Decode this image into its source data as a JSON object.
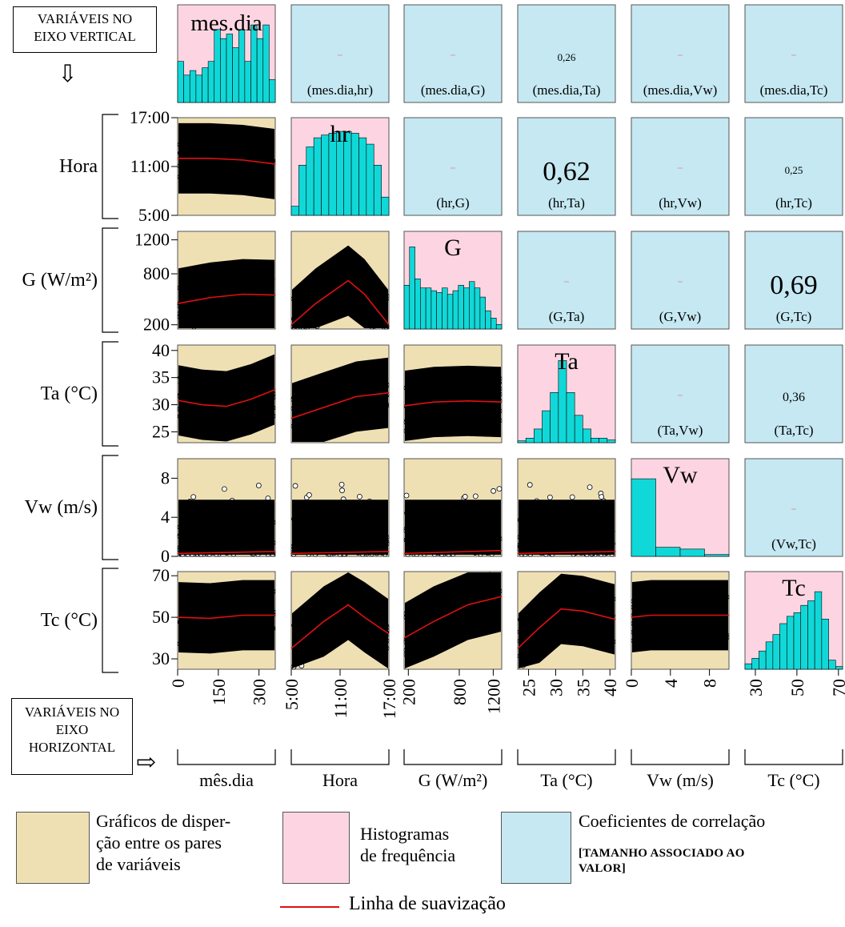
{
  "colors": {
    "scatter_bg": "#efe0b4",
    "hist_bg": "#fdd5e2",
    "corr_bg": "#c5e8f2",
    "hist_bar": "#10d8d8",
    "smooth_line": "#e01010",
    "points": "#000000"
  },
  "notes": {
    "vertical_axis_note": "VARIÁVEIS NO EIXO VERTICAL",
    "horizontal_axis_note": "VARIÁVEIS NO EIXO HORIZONTAL",
    "down_arrow_icon": "down-arrow-outline",
    "right_arrow_icon": "right-arrow-outline"
  },
  "chart_data": {
    "type": "scatter-matrix",
    "variables": [
      {
        "id": "mes.dia",
        "row_label": "",
        "col_label": "mês.dia",
        "hist_label": "mes.dia",
        "ticks": [
          "0",
          "150",
          "300"
        ]
      },
      {
        "id": "hr",
        "row_label": "Hora",
        "col_label": "Hora",
        "hist_label": "hr",
        "ticks": [
          "5:00",
          "11:00",
          "17:00"
        ]
      },
      {
        "id": "G",
        "row_label": "G (W/m²)",
        "col_label": "G (W/m²)",
        "hist_label": "G",
        "ticks": [
          "200",
          "800",
          "1200"
        ]
      },
      {
        "id": "Ta",
        "row_label": "Ta (°C)",
        "col_label": "Ta (°C)",
        "hist_label": "Ta",
        "ticks": [
          "25",
          "30",
          "35",
          "40"
        ]
      },
      {
        "id": "Vw",
        "row_label": "Vw (m/s)",
        "col_label": "Vw (m/s)",
        "hist_label": "Vw",
        "ticks": [
          "0",
          "4",
          "8"
        ]
      },
      {
        "id": "Tc",
        "row_label": "Tc (°C)",
        "col_label": "Tc (°C)",
        "hist_label": "Tc",
        "ticks": [
          "30",
          "50",
          "70"
        ]
      }
    ],
    "row_ticks": {
      "hr": [
        "17:00",
        "11:00",
        "5:00"
      ],
      "G": [
        "1200",
        "800",
        "200"
      ],
      "Ta": [
        "40",
        "35",
        "30",
        "25"
      ],
      "Vw": [
        "8",
        "4",
        "0"
      ],
      "Tc": [
        "70",
        "50",
        "30"
      ]
    },
    "ranges": {
      "mes.dia": [
        0,
        360
      ],
      "hr": [
        5,
        17
      ],
      "G": [
        150,
        1300
      ],
      "Ta": [
        23,
        41
      ],
      "Vw": [
        0,
        10
      ],
      "Tc": [
        25,
        72
      ]
    },
    "correlations": [
      {
        "pair": "(mes.dia,hr)",
        "value": "",
        "size": "tiny"
      },
      {
        "pair": "(mes.dia,G)",
        "value": "",
        "size": "tiny"
      },
      {
        "pair": "(mes.dia,Ta)",
        "value": "0,26",
        "size": "small"
      },
      {
        "pair": "(mes.dia,Vw)",
        "value": "",
        "size": "tiny"
      },
      {
        "pair": "(mes.dia,Tc)",
        "value": "",
        "size": "tiny"
      },
      {
        "pair": "(hr,G)",
        "value": "",
        "size": "tiny"
      },
      {
        "pair": "(hr,Ta)",
        "value": "0,62",
        "size": "large"
      },
      {
        "pair": "(hr,Vw)",
        "value": "",
        "size": "tiny"
      },
      {
        "pair": "(hr,Tc)",
        "value": "0,25",
        "size": "small"
      },
      {
        "pair": "(G,Ta)",
        "value": "",
        "size": "tiny"
      },
      {
        "pair": "(G,Vw)",
        "value": "",
        "size": "tiny"
      },
      {
        "pair": "(G,Tc)",
        "value": "0,69",
        "size": "large"
      },
      {
        "pair": "(Ta,Vw)",
        "value": "",
        "size": "tiny"
      },
      {
        "pair": "(Ta,Tc)",
        "value": "0,36",
        "size": "medium"
      },
      {
        "pair": "(Vw,Tc)",
        "value": "",
        "size": "tiny"
      }
    ],
    "histograms": {
      "mes.dia": [
        0.45,
        0.3,
        0.35,
        0.3,
        0.38,
        0.45,
        0.8,
        0.7,
        0.75,
        0.6,
        0.8,
        0.45,
        0.85,
        0.7,
        0.85,
        0.25
      ],
      "hr": [
        0.1,
        0.55,
        0.75,
        0.85,
        0.88,
        0.9,
        0.92,
        0.92,
        0.9,
        0.85,
        0.78,
        0.55,
        0.2
      ],
      "G": [
        0.48,
        0.9,
        0.55,
        0.45,
        0.45,
        0.42,
        0.4,
        0.45,
        0.38,
        0.42,
        0.48,
        0.45,
        0.52,
        0.45,
        0.35,
        0.2,
        0.12,
        0.05
      ],
      "Ta": [
        0.02,
        0.05,
        0.15,
        0.35,
        0.55,
        0.9,
        0.55,
        0.3,
        0.15,
        0.05,
        0.05,
        0.03
      ],
      "Vw": [
        0.85,
        0.1,
        0.08,
        0.02
      ],
      "Tc": [
        0.06,
        0.12,
        0.2,
        0.3,
        0.38,
        0.5,
        0.58,
        0.62,
        0.7,
        0.75,
        0.85,
        0.55,
        0.1,
        0.03
      ]
    },
    "smoothing": {
      "hr|mes.dia": {
        "x": [
          0,
          120,
          240,
          360
        ],
        "y": [
          12,
          12,
          11.8,
          11.3
        ]
      },
      "G|mes.dia": {
        "x": [
          0,
          120,
          240,
          360
        ],
        "y": [
          450,
          520,
          560,
          550
        ]
      },
      "G|hr": {
        "x": [
          5,
          8,
          12,
          14,
          17
        ],
        "y": [
          200,
          450,
          720,
          560,
          200
        ]
      },
      "Ta|mes.dia": {
        "x": [
          0,
          90,
          180,
          270,
          360
        ],
        "y": [
          30.8,
          30,
          29.7,
          31,
          32.8
        ]
      },
      "Ta|hr": {
        "x": [
          5,
          9,
          13,
          17
        ],
        "y": [
          27.5,
          29.5,
          31.5,
          32.2
        ]
      },
      "Ta|G": {
        "x": [
          150,
          500,
          900,
          1300
        ],
        "y": [
          29.8,
          30.5,
          30.7,
          30.5
        ]
      },
      "Vw|mes.dia": {
        "x": [
          0,
          360
        ],
        "y": [
          0.3,
          0.5
        ]
      },
      "Vw|hr": {
        "x": [
          5,
          17
        ],
        "y": [
          0.3,
          0.5
        ]
      },
      "Vw|G": {
        "x": [
          150,
          1300
        ],
        "y": [
          0.3,
          0.6
        ]
      },
      "Vw|Ta": {
        "x": [
          23,
          41
        ],
        "y": [
          0.3,
          0.5
        ]
      },
      "Tc|mes.dia": {
        "x": [
          0,
          120,
          240,
          360
        ],
        "y": [
          50,
          49.5,
          51,
          51
        ]
      },
      "Tc|hr": {
        "x": [
          5,
          9,
          12,
          14,
          17
        ],
        "y": [
          35,
          48,
          56,
          50,
          42
        ]
      },
      "Tc|G": {
        "x": [
          150,
          500,
          900,
          1300
        ],
        "y": [
          40,
          48,
          56,
          60
        ]
      },
      "Tc|Ta": {
        "x": [
          23,
          27,
          31,
          35,
          41
        ],
        "y": [
          35,
          45,
          54,
          53,
          49
        ]
      },
      "Tc|Vw": {
        "x": [
          0,
          2,
          5,
          10
        ],
        "y": [
          50,
          51,
          51,
          51
        ]
      }
    }
  },
  "legend": {
    "scatter_label": "Gráficos de disper- ção entre os pares de variáveis",
    "scatter_l1": "Gráficos de disper-",
    "scatter_l2": "ção entre os pares",
    "scatter_l3": "de variáveis",
    "hist_l1": "Histogramas",
    "hist_l2": "de frequência",
    "corr_l1": "Coeficientes de correlação",
    "corr_l2": "[TAMANHO ASSOCIADO AO",
    "corr_l3": "VALOR]",
    "smooth_label": "Linha de suavização"
  }
}
